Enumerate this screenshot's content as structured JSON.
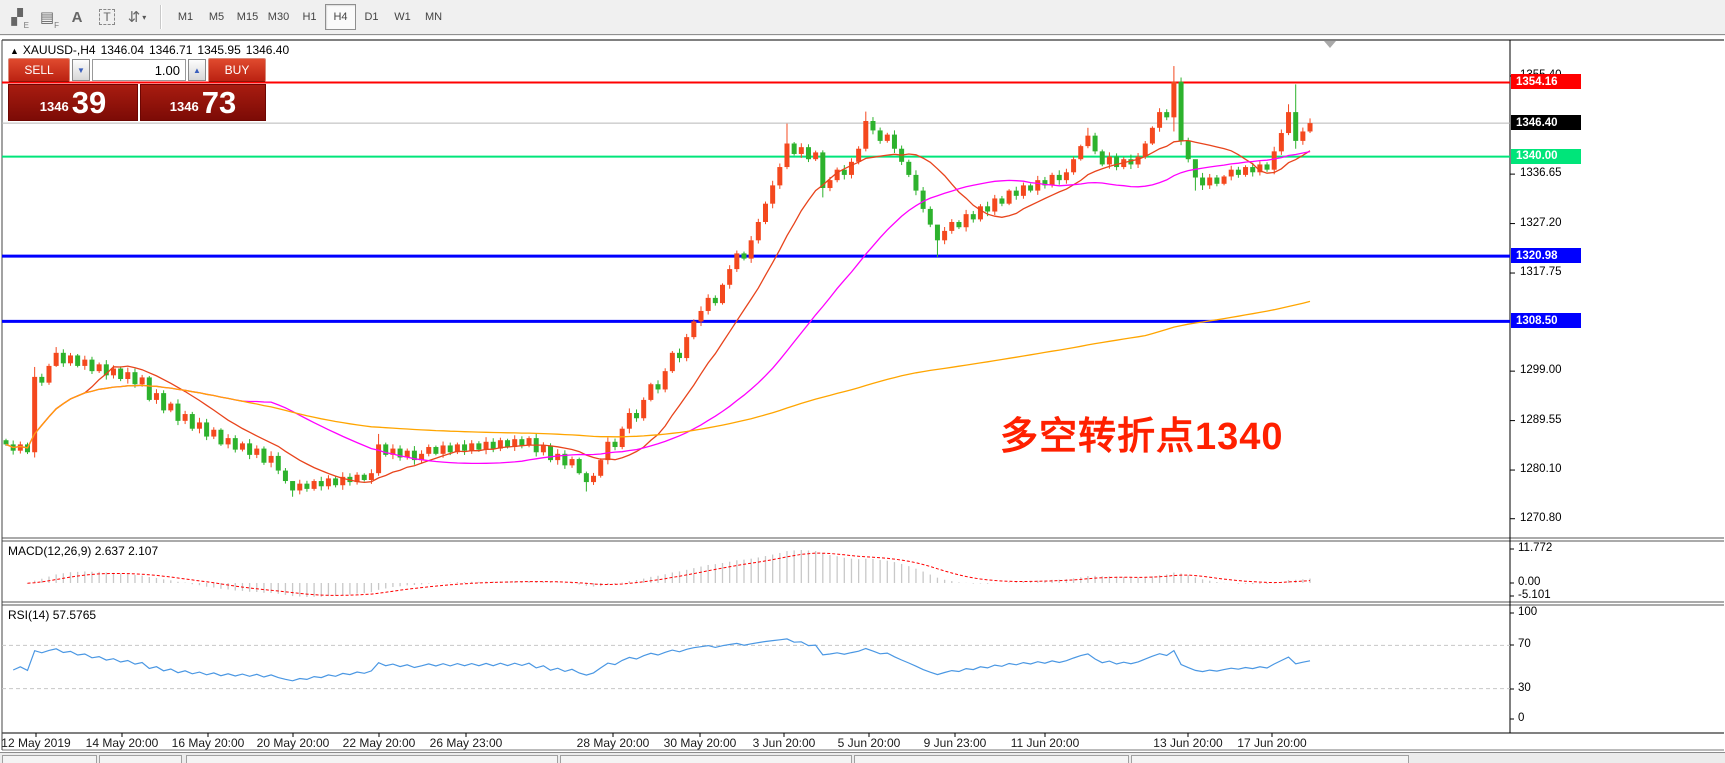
{
  "toolbar": {
    "tools": [
      {
        "name": "pattern-draw-tool",
        "glyph": "▞",
        "sub": "E"
      },
      {
        "name": "fibonacci-tool",
        "glyph": "▤",
        "sub": "F"
      },
      {
        "name": "text-label-tool",
        "glyph": "A",
        "sub": ""
      },
      {
        "name": "text-box-tool",
        "glyph": "T",
        "sub": ""
      },
      {
        "name": "arrows-tool",
        "glyph": "⇵",
        "sub": ""
      }
    ],
    "dropdown_caret": "▾",
    "timeframes": {
      "items": [
        "M1",
        "M5",
        "M15",
        "M30",
        "H1",
        "H4",
        "D1",
        "W1",
        "MN"
      ],
      "active": "H4"
    }
  },
  "chart": {
    "symbol_header": {
      "arrow": "▲",
      "symbol": "XAUUSD-,H4",
      "open": "1346.04",
      "high": "1346.71",
      "low": "1345.95",
      "close": "1346.40"
    },
    "trade_panel": {
      "sell_label": "SELL",
      "buy_label": "BUY",
      "volume": "1.00",
      "spinner_down": "▼",
      "spinner_up": "▲",
      "sell_price": {
        "base": "1346",
        "pips": "39"
      },
      "buy_price": {
        "base": "1346",
        "pips": "73"
      }
    },
    "price_scale": {
      "ticks": [
        {
          "label": "1355.40",
          "price": 1355.4
        },
        {
          "label": "1336.65",
          "price": 1336.65
        },
        {
          "label": "1327.20",
          "price": 1327.2
        },
        {
          "label": "1317.75",
          "price": 1317.75
        },
        {
          "label": "1299.00",
          "price": 1299.0
        },
        {
          "label": "1289.55",
          "price": 1289.55
        },
        {
          "label": "1280.10",
          "price": 1280.1
        },
        {
          "label": "1270.80",
          "price": 1270.8
        }
      ],
      "badges": [
        {
          "label": "1354.16",
          "price": 1354.16,
          "bg": "#ff0000",
          "fg": "#ffffff"
        },
        {
          "label": "1346.40",
          "price": 1346.4,
          "bg": "#000000",
          "fg": "#ffffff"
        },
        {
          "label": "1340.00",
          "price": 1340.0,
          "bg": "#00e57a",
          "fg": "#ffffff"
        },
        {
          "label": "1320.98",
          "price": 1320.98,
          "bg": "#0000ff",
          "fg": "#ffffff"
        },
        {
          "label": "1308.50",
          "price": 1308.5,
          "bg": "#0000ff",
          "fg": "#ffffff"
        }
      ]
    }
  },
  "macd_panel": {
    "label": "MACD(12,26,9)",
    "main_value": "2.637",
    "signal_value": "2.107",
    "scale_labels": [
      "11.772",
      "0.00",
      "-5.101"
    ]
  },
  "rsi_panel": {
    "label": "RSI(14)",
    "value": "57.5765",
    "scale_labels": [
      "100",
      "70",
      "30",
      "0"
    ]
  },
  "date_axis": {
    "labels": [
      "12 May 2019",
      "14 May 20:00",
      "16 May 20:00",
      "20 May 20:00",
      "22 May 20:00",
      "26 May 23:00",
      "28 May 20:00",
      "30 May 20:00",
      "3 Jun 20:00",
      "5 Jun 20:00",
      "9 Jun 23:00",
      "11 Jun 20:00",
      "13 Jun 20:00",
      "17 Jun 20:00"
    ]
  },
  "chart_data": {
    "type": "candlestick",
    "symbol": "XAUUSD-",
    "timeframe": "H4",
    "price_axis": {
      "top_price": 1362.3,
      "bottom_price": 1267.0
    },
    "first_open": 1285.8,
    "closes": [
      1285.0,
      1283.8,
      1285.0,
      1283.5,
      1297.9,
      1296.8,
      1300.0,
      1302.5,
      1300.5,
      1302.0,
      1300.0,
      1301.2,
      1299.0,
      1300.3,
      1298.2,
      1299.5,
      1297.5,
      1298.8,
      1296.5,
      1297.8,
      1293.5,
      1294.8,
      1291.5,
      1292.8,
      1289.5,
      1290.8,
      1288.0,
      1289.2,
      1286.5,
      1287.8,
      1285.0,
      1286.2,
      1284.0,
      1285.2,
      1283.0,
      1284.2,
      1281.5,
      1282.8,
      1280.0,
      1278.0,
      1276.2,
      1277.5,
      1276.5,
      1278.0,
      1277.0,
      1278.5,
      1277.2,
      1278.8,
      1277.8,
      1279.2,
      1278.2,
      1279.5,
      1285.0,
      1283.0,
      1284.2,
      1282.5,
      1283.8,
      1282.0,
      1283.2,
      1284.5,
      1283.2,
      1284.8,
      1283.5,
      1285.0,
      1283.8,
      1285.2,
      1284.0,
      1285.5,
      1284.2,
      1285.8,
      1284.5,
      1286.0,
      1284.8,
      1286.2,
      1283.5,
      1284.8,
      1282.0,
      1283.2,
      1281.0,
      1282.2,
      1279.5,
      1277.8,
      1279.0,
      1282.0,
      1285.5,
      1284.5,
      1288.0,
      1291.0,
      1290.0,
      1293.5,
      1296.5,
      1295.5,
      1299.0,
      1302.5,
      1301.5,
      1305.5,
      1308.5,
      1310.5,
      1313.0,
      1312.0,
      1315.5,
      1318.5,
      1321.5,
      1320.5,
      1324.0,
      1327.5,
      1331.0,
      1334.5,
      1338.0,
      1342.5,
      1340.5,
      1341.8,
      1339.5,
      1340.8,
      1334.0,
      1335.5,
      1337.5,
      1336.5,
      1339.0,
      1341.5,
      1346.8,
      1345.0,
      1343.0,
      1344.2,
      1341.5,
      1339.0,
      1336.5,
      1333.5,
      1330.0,
      1327.0,
      1324.0,
      1325.8,
      1327.5,
      1326.5,
      1329.0,
      1328.0,
      1330.5,
      1329.5,
      1332.0,
      1331.0,
      1333.5,
      1332.5,
      1334.5,
      1333.5,
      1335.5,
      1334.5,
      1336.5,
      1335.5,
      1337.0,
      1339.5,
      1342.0,
      1344.0,
      1341.0,
      1338.5,
      1340.0,
      1338.0,
      1339.5,
      1338.5,
      1340.0,
      1342.5,
      1345.5,
      1348.5,
      1347.5,
      1354.3,
      1343.0,
      1339.5,
      1336.0,
      1334.5,
      1336.0,
      1334.8,
      1336.2,
      1337.5,
      1336.5,
      1338.0,
      1337.0,
      1338.5,
      1337.5,
      1341.0,
      1344.5,
      1348.5,
      1343.0,
      1344.8,
      1346.4
    ],
    "wick_overrides": {
      "4": [
        1299.8,
        1282.5
      ],
      "7": [
        1303.6,
        1299.8
      ],
      "40": [
        1277.6,
        1275.0
      ],
      "52": [
        1287.0,
        1279.0
      ],
      "81": [
        1279.8,
        1276.0
      ],
      "109": [
        1346.3,
        1337.6
      ],
      "114": [
        1341.2,
        1332.2
      ],
      "120": [
        1348.6,
        1341.0
      ],
      "130": [
        1324.8,
        1320.8
      ],
      "151": [
        1345.5,
        1341.6
      ],
      "163": [
        1357.3,
        1344.8
      ],
      "166": [
        1337.2,
        1333.5
      ],
      "179": [
        1350.0,
        1344.1
      ],
      "180": [
        1353.8,
        1341.5
      ],
      "182": [
        1347.3,
        1344.5
      ]
    },
    "moving_averages": [
      {
        "name": "ma-fast",
        "period": 12,
        "color": "#e8441c"
      },
      {
        "name": "ma-mid",
        "period": 34,
        "color": "#ff00ff"
      },
      {
        "name": "ma-slow",
        "period": 160,
        "color": "#ffa500"
      }
    ],
    "levels": [
      {
        "price": 1354.16,
        "color": "#ff0000",
        "width": 2
      },
      {
        "price": 1346.4,
        "color": "#b8b8b8",
        "width": 1
      },
      {
        "price": 1340.0,
        "color": "#00e57a",
        "width": 2
      },
      {
        "price": 1320.98,
        "color": "#0000ff",
        "width": 3
      },
      {
        "price": 1308.5,
        "color": "#0000ff",
        "width": 3
      }
    ],
    "indicators": {
      "macd": {
        "fast": 12,
        "slow": 26,
        "signal": 9,
        "main_value": 2.637,
        "signal_value": 2.107,
        "axis": [
          11.772,
          0.0,
          -5.101
        ]
      },
      "rsi": {
        "period": 14,
        "value": 57.5765,
        "levels": [
          70,
          30
        ],
        "axis": [
          100,
          70,
          30,
          0
        ]
      }
    },
    "annotation": {
      "text": "多空转折点1340",
      "color": "#ff2000"
    },
    "colors": {
      "up": "#f4481e",
      "down": "#2db22d",
      "macd_hist": "#c8c8c8",
      "macd_signal": "#ff0000",
      "rsi_line": "#4a97e3",
      "dashed_level": "#c8c8c8"
    }
  }
}
